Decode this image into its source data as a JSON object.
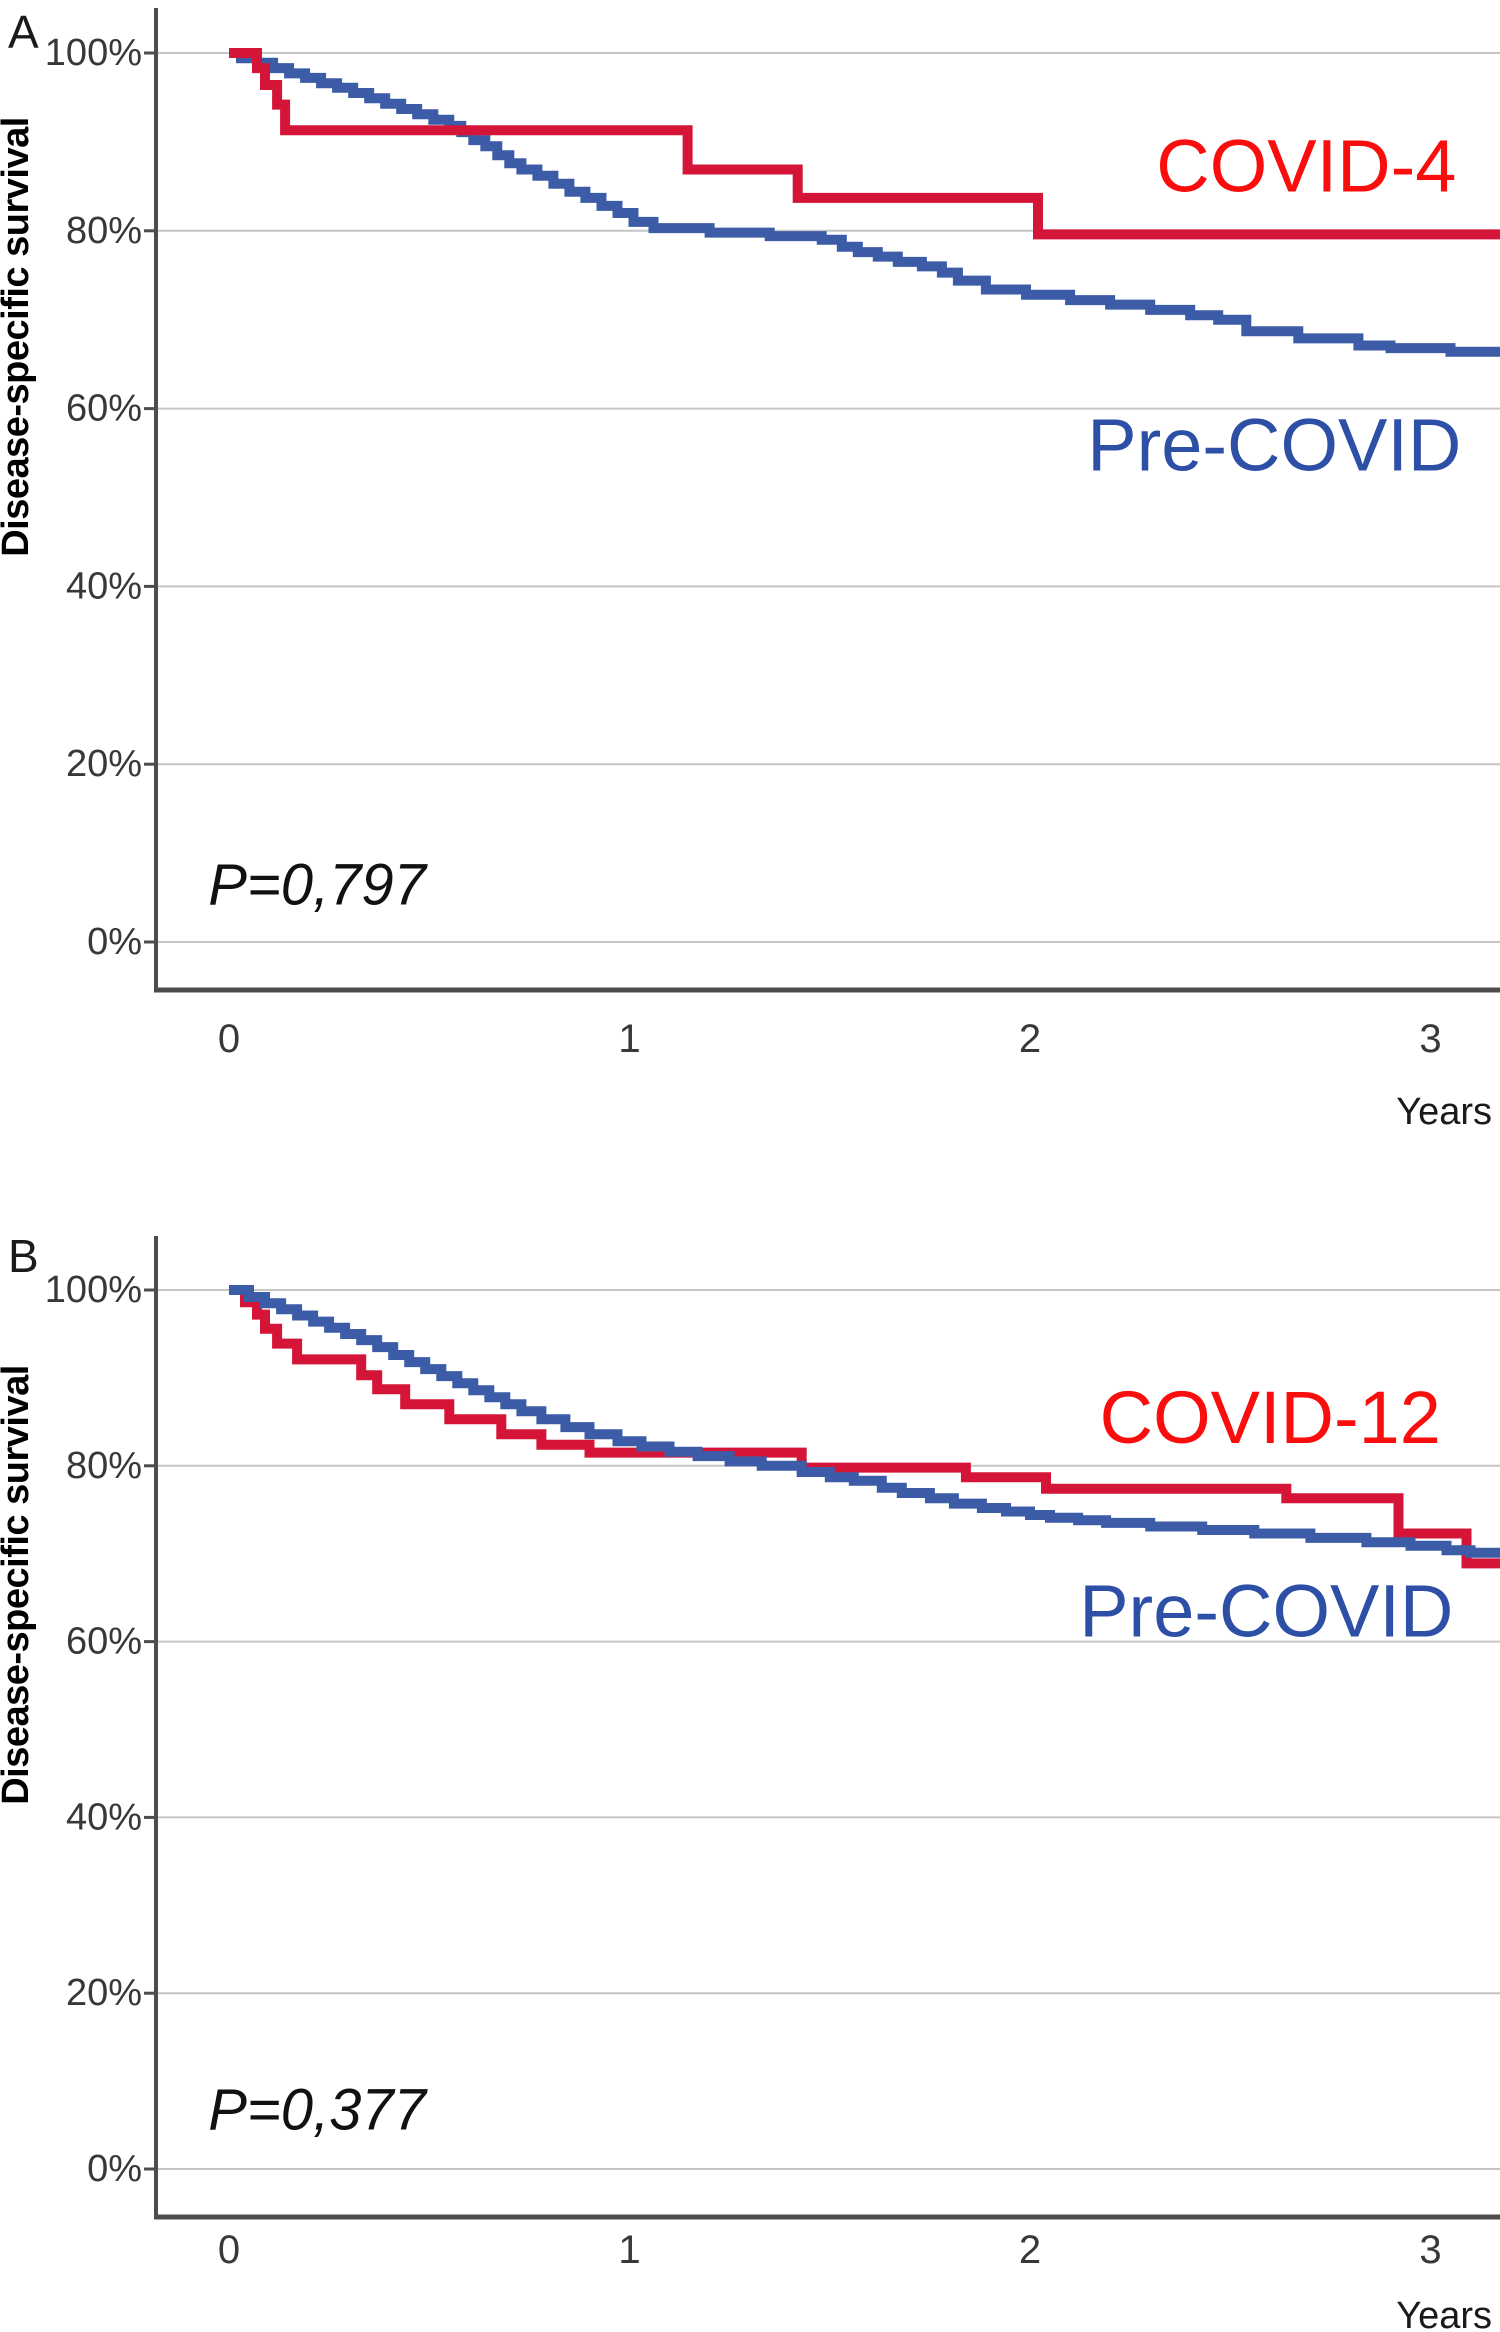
{
  "figure": {
    "background": "#ffffff"
  },
  "shared": {
    "y_axis_title": "Disease-specific survival",
    "x_axis_title": "Years",
    "y_ticks": [
      {
        "label": "100%",
        "value": 100
      },
      {
        "label": "80%",
        "value": 80
      },
      {
        "label": "60%",
        "value": 60
      },
      {
        "label": "40%",
        "value": 40
      },
      {
        "label": "20%",
        "value": 20
      },
      {
        "label": "0%",
        "value": 0
      }
    ],
    "x_ticks": [
      {
        "label": "0",
        "value": 0
      },
      {
        "label": "1",
        "value": 1
      },
      {
        "label": "2",
        "value": 2
      },
      {
        "label": "3",
        "value": 3
      }
    ],
    "colors": {
      "curve_red": "#d41537",
      "curve_blue": "#3c5ca8",
      "label_red": "#f90d0d",
      "label_blue": "#2d4fa5",
      "gridline": "#c6c6c6",
      "axis": "#4d4d4d",
      "tick_text": "#383838",
      "annotation_text": "#111111"
    }
  },
  "chart_data": [
    {
      "panel_letter": "A",
      "type": "line",
      "subtype": "kaplan-meier-step",
      "title": "",
      "xlabel": "Years",
      "ylabel": "Disease-specific survival",
      "xlim": [
        0,
        3.17
      ],
      "ylim": [
        0,
        100
      ],
      "grid": "horizontal",
      "legend_position": "inline-labels",
      "p_value": {
        "text": "P=0,797",
        "x": 0.22,
        "y": 6.4
      },
      "series": [
        {
          "name": "Pre-COVID",
          "color": "#3c5ca8",
          "label": {
            "text": "Pre-COVID",
            "color": "#2d4fa5",
            "x": 2.61,
            "y": 55.9
          },
          "points": [
            [
              0,
              100
            ],
            [
              0.03,
              99.4
            ],
            [
              0.07,
              98.9
            ],
            [
              0.11,
              98.3
            ],
            [
              0.15,
              97.7
            ],
            [
              0.19,
              97.2
            ],
            [
              0.23,
              96.6
            ],
            [
              0.27,
              96.1
            ],
            [
              0.31,
              95.5
            ],
            [
              0.35,
              94.9
            ],
            [
              0.39,
              94.3
            ],
            [
              0.43,
              93.7
            ],
            [
              0.47,
              93.1
            ],
            [
              0.51,
              92.5
            ],
            [
              0.55,
              91.8
            ],
            [
              0.58,
              91.1
            ],
            [
              0.61,
              90.2
            ],
            [
              0.64,
              89.5
            ],
            [
              0.67,
              88.5
            ],
            [
              0.7,
              87.6
            ],
            [
              0.73,
              86.9
            ],
            [
              0.77,
              86.2
            ],
            [
              0.81,
              85.3
            ],
            [
              0.85,
              84.4
            ],
            [
              0.89,
              83.7
            ],
            [
              0.93,
              82.8
            ],
            [
              0.97,
              82.0
            ],
            [
              1.01,
              81.0
            ],
            [
              1.06,
              80.3
            ],
            [
              1.2,
              79.8
            ],
            [
              1.35,
              79.4
            ],
            [
              1.48,
              79.0
            ],
            [
              1.53,
              78.2
            ],
            [
              1.57,
              77.6
            ],
            [
              1.62,
              77.1
            ],
            [
              1.67,
              76.5
            ],
            [
              1.73,
              76.0
            ],
            [
              1.78,
              75.3
            ],
            [
              1.82,
              74.4
            ],
            [
              1.89,
              73.4
            ],
            [
              1.99,
              72.8
            ],
            [
              2.1,
              72.2
            ],
            [
              2.2,
              71.7
            ],
            [
              2.3,
              71.1
            ],
            [
              2.4,
              70.5
            ],
            [
              2.47,
              70.0
            ],
            [
              2.54,
              68.7
            ],
            [
              2.67,
              67.9
            ],
            [
              2.82,
              67.1
            ],
            [
              2.9,
              66.8
            ],
            [
              3.05,
              66.4
            ]
          ]
        },
        {
          "name": "COVID-4",
          "color": "#d41537",
          "label": {
            "text": "COVID-4",
            "color": "#f90d0d",
            "x": 2.69,
            "y": 87.3
          },
          "points": [
            [
              0,
              100
            ],
            [
              0.07,
              98.3
            ],
            [
              0.09,
              96.4
            ],
            [
              0.12,
              94.2
            ],
            [
              0.14,
              91.3
            ],
            [
              1.145,
              86.9
            ],
            [
              1.42,
              83.7
            ],
            [
              2.02,
              79.6
            ]
          ]
        }
      ]
    },
    {
      "panel_letter": "B",
      "type": "line",
      "subtype": "kaplan-meier-step",
      "title": "",
      "xlabel": "Years",
      "ylabel": "Disease-specific survival",
      "xlim": [
        0,
        3.17
      ],
      "ylim": [
        0,
        100
      ],
      "grid": "horizontal",
      "legend_position": "inline-labels",
      "p_value": {
        "text": "P=0,377",
        "x": 0.22,
        "y": 6.7
      },
      "series": [
        {
          "name": "COVID-12",
          "color": "#d41537",
          "label": {
            "text": "COVID-12",
            "color": "#f90d0d",
            "x": 2.6,
            "y": 85.5
          },
          "points": [
            [
              0,
              100
            ],
            [
              0.04,
              98.6
            ],
            [
              0.07,
              97.2
            ],
            [
              0.09,
              95.6
            ],
            [
              0.12,
              93.9
            ],
            [
              0.17,
              92.1
            ],
            [
              0.33,
              90.3
            ],
            [
              0.37,
              88.7
            ],
            [
              0.44,
              87.0
            ],
            [
              0.55,
              85.3
            ],
            [
              0.68,
              83.6
            ],
            [
              0.78,
              82.4
            ],
            [
              0.9,
              81.5
            ],
            [
              1.43,
              79.8
            ],
            [
              1.84,
              78.7
            ],
            [
              2.04,
              77.4
            ],
            [
              2.64,
              76.3
            ],
            [
              2.92,
              72.3
            ],
            [
              3.09,
              68.9
            ]
          ]
        },
        {
          "name": "Pre-COVID",
          "color": "#3c5ca8",
          "label": {
            "text": "Pre-COVID",
            "color": "#2d4fa5",
            "x": 2.59,
            "y": 63.5
          },
          "points": [
            [
              0,
              100
            ],
            [
              0.05,
              99.2
            ],
            [
              0.09,
              98.5
            ],
            [
              0.13,
              97.8
            ],
            [
              0.17,
              97.1
            ],
            [
              0.21,
              96.4
            ],
            [
              0.25,
              95.7
            ],
            [
              0.29,
              95.0
            ],
            [
              0.33,
              94.3
            ],
            [
              0.37,
              93.5
            ],
            [
              0.41,
              92.6
            ],
            [
              0.45,
              91.8
            ],
            [
              0.49,
              91.0
            ],
            [
              0.53,
              90.2
            ],
            [
              0.57,
              89.4
            ],
            [
              0.61,
              88.6
            ],
            [
              0.65,
              87.8
            ],
            [
              0.69,
              87.0
            ],
            [
              0.73,
              86.2
            ],
            [
              0.78,
              85.3
            ],
            [
              0.84,
              84.4
            ],
            [
              0.9,
              83.6
            ],
            [
              0.97,
              82.8
            ],
            [
              1.03,
              82.2
            ],
            [
              1.1,
              81.6
            ],
            [
              1.17,
              81.1
            ],
            [
              1.25,
              80.5
            ],
            [
              1.33,
              80.0
            ],
            [
              1.43,
              79.3
            ],
            [
              1.5,
              78.7
            ],
            [
              1.56,
              78.3
            ],
            [
              1.63,
              77.5
            ],
            [
              1.68,
              76.9
            ],
            [
              1.75,
              76.3
            ],
            [
              1.81,
              75.7
            ],
            [
              1.88,
              75.2
            ],
            [
              1.94,
              74.8
            ],
            [
              2.0,
              74.4
            ],
            [
              2.05,
              74.1
            ],
            [
              2.12,
              73.8
            ],
            [
              2.19,
              73.5
            ],
            [
              2.3,
              73.1
            ],
            [
              2.43,
              72.7
            ],
            [
              2.56,
              72.3
            ],
            [
              2.7,
              71.8
            ],
            [
              2.84,
              71.3
            ],
            [
              2.95,
              70.9
            ],
            [
              3.04,
              70.4
            ],
            [
              3.1,
              70.1
            ]
          ]
        }
      ]
    }
  ]
}
